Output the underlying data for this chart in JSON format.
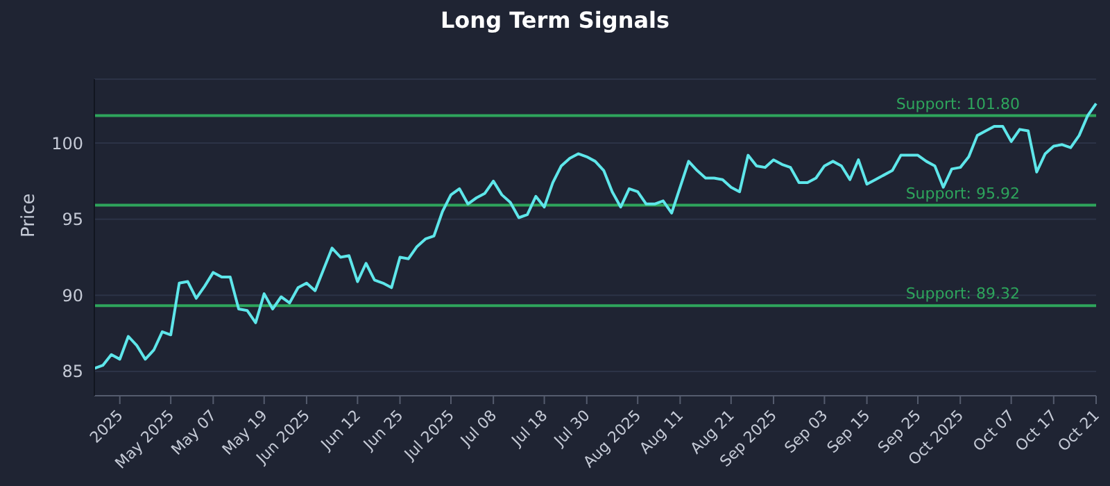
{
  "chart_data": {
    "type": "line",
    "title": "Long Term Signals",
    "ylabel": "Price",
    "categories": [
      null,
      null,
      null,
      "2025",
      null,
      null,
      null,
      null,
      null,
      "May 2025",
      null,
      null,
      null,
      null,
      "May 07",
      null,
      null,
      null,
      null,
      null,
      "May 19",
      null,
      null,
      null,
      null,
      "Jun 2025",
      null,
      null,
      null,
      null,
      null,
      "Jun 12",
      null,
      null,
      null,
      null,
      "Jun 25",
      null,
      null,
      null,
      null,
      null,
      "Jul 2025",
      null,
      null,
      null,
      null,
      "Jul 08",
      null,
      null,
      null,
      null,
      null,
      "Jul 18",
      null,
      null,
      null,
      null,
      "Jul 30",
      null,
      null,
      null,
      null,
      null,
      "Aug 2025",
      null,
      null,
      null,
      null,
      "Aug 11",
      null,
      null,
      null,
      null,
      null,
      "Aug 21",
      null,
      null,
      null,
      null,
      "Sep 2025",
      null,
      null,
      null,
      null,
      null,
      "Sep 03",
      null,
      null,
      null,
      null,
      "Sep 15",
      null,
      null,
      null,
      null,
      null,
      "Sep 25",
      null,
      null,
      null,
      null,
      "Oct 2025",
      null,
      null,
      null,
      null,
      null,
      "Oct 07",
      null,
      null,
      null,
      null,
      "Oct 17",
      null,
      null,
      null,
      null,
      "Oct 21"
    ],
    "series": [
      {
        "color": "#5ee6ea",
        "values": [
          85.2,
          85.4,
          86.1,
          85.8,
          87.3,
          86.7,
          85.8,
          86.4,
          87.6,
          87.4,
          90.8,
          90.9,
          89.8,
          90.6,
          91.5,
          91.2,
          91.2,
          89.1,
          89.0,
          88.2,
          90.1,
          89.1,
          89.9,
          89.5,
          90.5,
          90.8,
          90.3,
          91.7,
          93.1,
          92.5,
          92.6,
          90.9,
          92.1,
          91.0,
          90.8,
          90.5,
          92.5,
          92.4,
          93.2,
          93.7,
          93.9,
          95.5,
          96.6,
          97.0,
          96.0,
          96.4,
          96.7,
          97.5,
          96.6,
          96.1,
          95.1,
          95.3,
          96.5,
          95.8,
          97.4,
          98.5,
          99.0,
          99.3,
          99.1,
          98.8,
          98.2,
          96.8,
          95.8,
          97.0,
          96.8,
          96.0,
          96.0,
          96.2,
          95.4,
          97.1,
          98.8,
          98.2,
          97.7,
          97.7,
          97.6,
          97.1,
          96.8,
          99.2,
          98.5,
          98.4,
          98.9,
          98.6,
          98.4,
          97.4,
          97.4,
          97.7,
          98.5,
          98.8,
          98.5,
          97.6,
          98.9,
          97.3,
          97.6,
          97.9,
          98.2,
          99.2,
          99.2,
          99.2,
          98.8,
          98.5,
          97.1,
          98.3,
          98.4,
          99.1,
          100.5,
          100.8,
          101.1,
          101.1,
          100.1,
          100.9,
          100.8,
          98.1,
          99.3,
          99.8,
          99.9,
          99.7,
          100.5,
          101.8,
          102.6
        ]
      }
    ],
    "ylim": [
      83.4,
      104.2
    ],
    "yticks": [
      85,
      90,
      95,
      100
    ],
    "grid": "y",
    "ref_lines": [
      {
        "axis": "y",
        "value": 101.8,
        "label": "Support: 101.80",
        "color": "#2ea55c"
      },
      {
        "axis": "y",
        "value": 95.92,
        "label": "Support: 95.92",
        "color": "#2ea55c"
      },
      {
        "axis": "y",
        "value": 89.32,
        "label": "Support: 89.32",
        "color": "#2ea55c"
      }
    ]
  }
}
